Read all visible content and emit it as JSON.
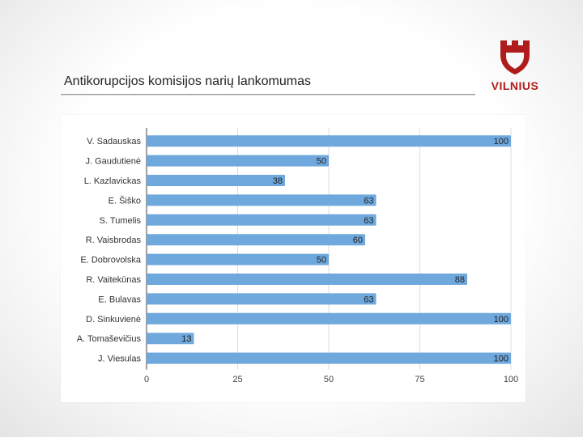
{
  "slide": {
    "title": "Antikorupcijos komisijos narių lankomumas"
  },
  "logo": {
    "name": "castle-logo",
    "text": "VILNIUS",
    "color": "#b01c1c"
  },
  "chart_data": {
    "type": "bar",
    "orientation": "horizontal",
    "categories": [
      "V. Sadauskas",
      "J. Gaudutienė",
      "L. Kazlavickas",
      "E. Šiško",
      "S. Tumelis",
      "R. Vaisbrodas",
      "E. Dobrovolska",
      "R. Vaitekūnas",
      "E. Bulavas",
      "D. Sinkuvienė",
      "A. Tomaševičius",
      "J. Viesulas"
    ],
    "values": [
      100,
      50,
      38,
      63,
      63,
      60,
      50,
      88,
      63,
      100,
      13,
      100
    ],
    "data_labels": [
      "100",
      "50",
      "38",
      "63",
      "63",
      "60",
      "50",
      "88",
      "63",
      "100",
      "13",
      "100"
    ],
    "x_ticks": [
      "0",
      "25",
      "50",
      "75",
      "100"
    ],
    "x_tick_values": [
      0,
      25,
      50,
      75,
      100
    ],
    "xlim": [
      0,
      100
    ],
    "bar_color": "#6fa8dc",
    "grid": true,
    "legend": "none"
  }
}
